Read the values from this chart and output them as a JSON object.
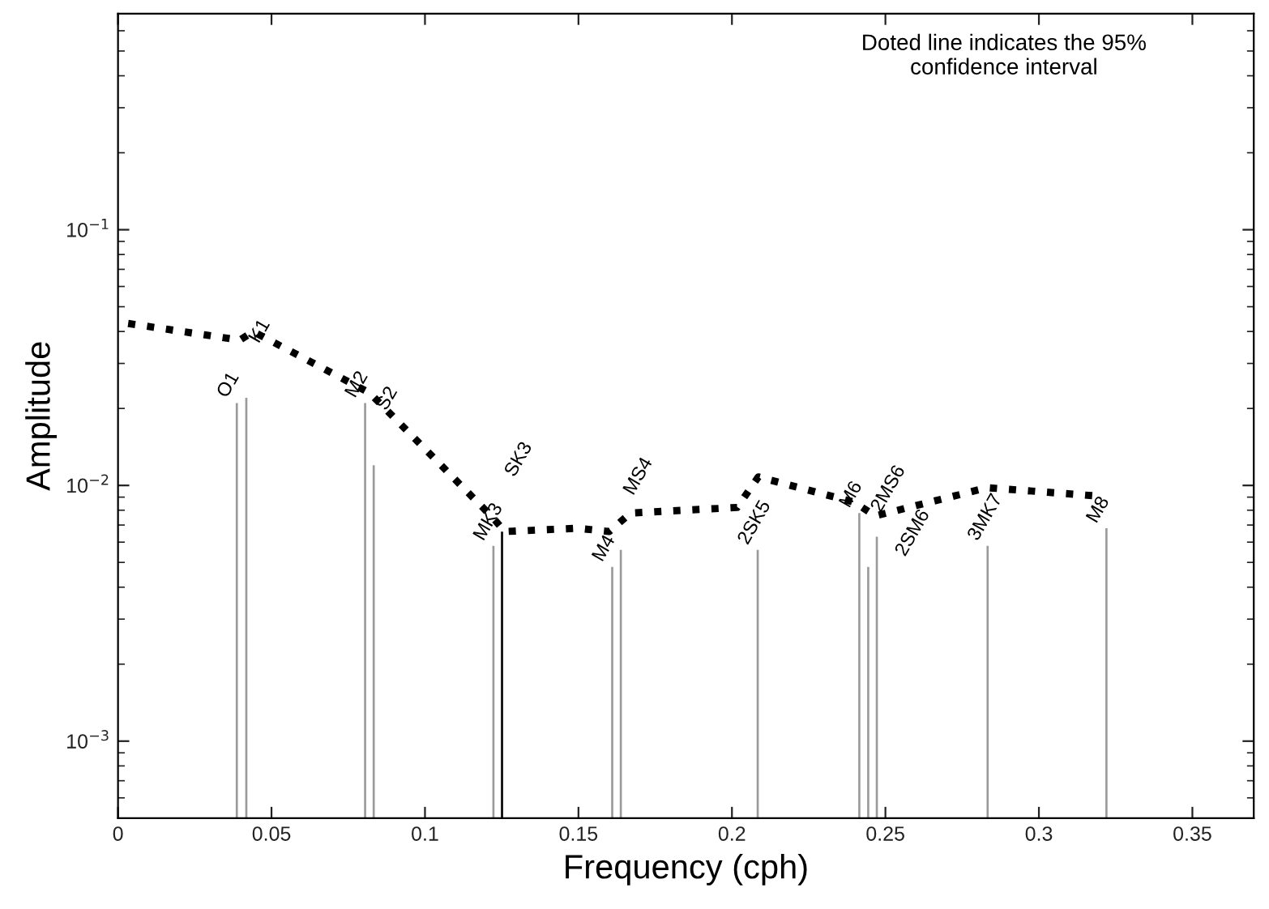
{
  "chart_data": {
    "type": "bar",
    "xlabel": "Frequency (cph)",
    "ylabel": "Amplitude",
    "log": "y",
    "xlim": [
      0,
      0.37
    ],
    "xticks": [
      0,
      0.05,
      0.1,
      0.15,
      0.2,
      0.25,
      0.3,
      0.35
    ],
    "ylim": [
      0.0005,
      0.7
    ],
    "yticks": [
      {
        "value": 0.001,
        "label": "10$^{−3}$"
      },
      {
        "value": 0.01,
        "label": "10$^{−2}$"
      },
      {
        "value": 0.1,
        "label": "10$^{−1}$"
      }
    ],
    "grid": false,
    "legend": false,
    "series": [
      {
        "x": [
          0.0387,
          0.0418,
          0.0805,
          0.0833,
          0.1223,
          0.1251,
          0.161,
          0.1638,
          0.2084,
          0.2415,
          0.2444,
          0.2472,
          0.2833,
          0.322
        ],
        "values": [
          0.021,
          0.022,
          0.021,
          0.012,
          0.0058,
          0.0066,
          0.0048,
          0.0056,
          0.0056,
          0.0078,
          0.0048,
          0.0063,
          0.0058,
          0.0068
        ],
        "colors": [
          "#9a9a9a",
          "#9a9a9a",
          "#9a9a9a",
          "#9a9a9a",
          "#9a9a9a",
          "#000000",
          "#9a9a9a",
          "#9a9a9a",
          "#9a9a9a",
          "#9a9a9a",
          "#9a9a9a",
          "#9a9a9a",
          "#9a9a9a",
          "#9a9a9a"
        ]
      },
      {
        "type": "line",
        "line_style": "dotted",
        "color": "#000000",
        "x": [
          0.0033,
          0.0397,
          0.044,
          0.082,
          0.122,
          0.126,
          0.1497,
          0.16,
          0.167,
          0.2017,
          0.2086,
          0.2398,
          0.2467,
          0.2831,
          0.3186
        ],
        "values": [
          0.043,
          0.037,
          0.04,
          0.023,
          0.0075,
          0.0066,
          0.0068,
          0.0066,
          0.0078,
          0.0082,
          0.0108,
          0.0086,
          0.0076,
          0.0098,
          0.0091
        ]
      }
    ],
    "annotations": [
      {
        "text": "O1",
        "x": 0.0387,
        "y": 0.021
      },
      {
        "text": "K1",
        "x": 0.0418,
        "y": 0.022
      },
      {
        "text": "M2",
        "x": 0.0805,
        "y": 0.021
      },
      {
        "text": "S2",
        "x": 0.0833,
        "y": 0.012
      },
      {
        "text": "MK3",
        "x": 0.1223,
        "y": 0.0058
      },
      {
        "text": "SK3",
        "x": 0.1251,
        "y": 0.0066
      },
      {
        "text": "M4",
        "x": 0.161,
        "y": 0.0048
      },
      {
        "text": "MS4",
        "x": 0.1638,
        "y": 0.0056
      },
      {
        "text": "2SK5",
        "x": 0.2084,
        "y": 0.0056
      },
      {
        "text": "M6",
        "x": 0.2415,
        "y": 0.0078
      },
      {
        "text": "2MS6",
        "x": 0.2444,
        "y": 0.0048
      },
      {
        "text": "2SM6",
        "x": 0.2472,
        "y": 0.0063
      },
      {
        "text": "3MK7",
        "x": 0.2833,
        "y": 0.0058
      },
      {
        "text": "M8",
        "x": 0.322,
        "y": 0.0068
      },
      "Doted line indicates the 95%\nconfidence interval"
    ]
  }
}
